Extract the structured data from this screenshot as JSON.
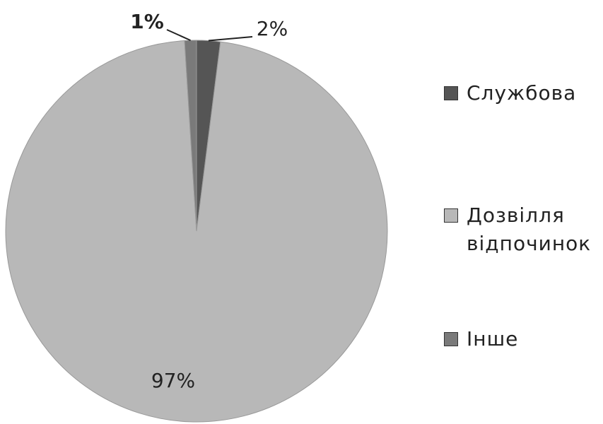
{
  "chart_data": {
    "type": "pie",
    "categories": [
      "Службова",
      "Дозвілля відпочинок",
      "Інше"
    ],
    "values": [
      2,
      97,
      1
    ],
    "value_labels": [
      "2%",
      "97%",
      "1%"
    ],
    "colors": [
      "#555555",
      "#b8b8b8",
      "#7a7a7a"
    ],
    "legend": "right"
  }
}
